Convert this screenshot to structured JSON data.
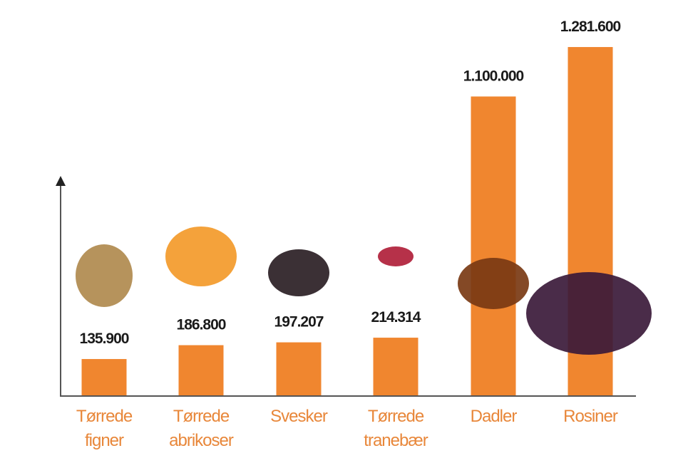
{
  "chart_data": {
    "type": "bar",
    "title": "",
    "xlabel": "",
    "ylabel": "",
    "categories": [
      [
        "Tørrede",
        "figner"
      ],
      [
        "Tørrede",
        "abrikoser"
      ],
      [
        "Svesker"
      ],
      [
        "Tørrede",
        "tranebær"
      ],
      [
        "Dadler"
      ],
      [
        "Rosiner"
      ]
    ],
    "values": [
      135900,
      186800,
      197207,
      214314,
      1100000,
      1281600
    ],
    "data_labels": [
      "135.900",
      "186.800",
      "197.207",
      "214.314",
      "1.100.000",
      "1.281.600"
    ],
    "ylim": [
      0,
      1300000
    ],
    "grid": false,
    "legend": "none",
    "icons": [
      "dried-fig-icon",
      "dried-apricot-icon",
      "prune-icon",
      "dried-cranberry-icon",
      "date-icon",
      "raisins-icon"
    ],
    "colors": {
      "bar": "#F0862F",
      "category_label": "#E8873A",
      "value_label": "#1a1a1a",
      "axis": "#555555"
    }
  }
}
